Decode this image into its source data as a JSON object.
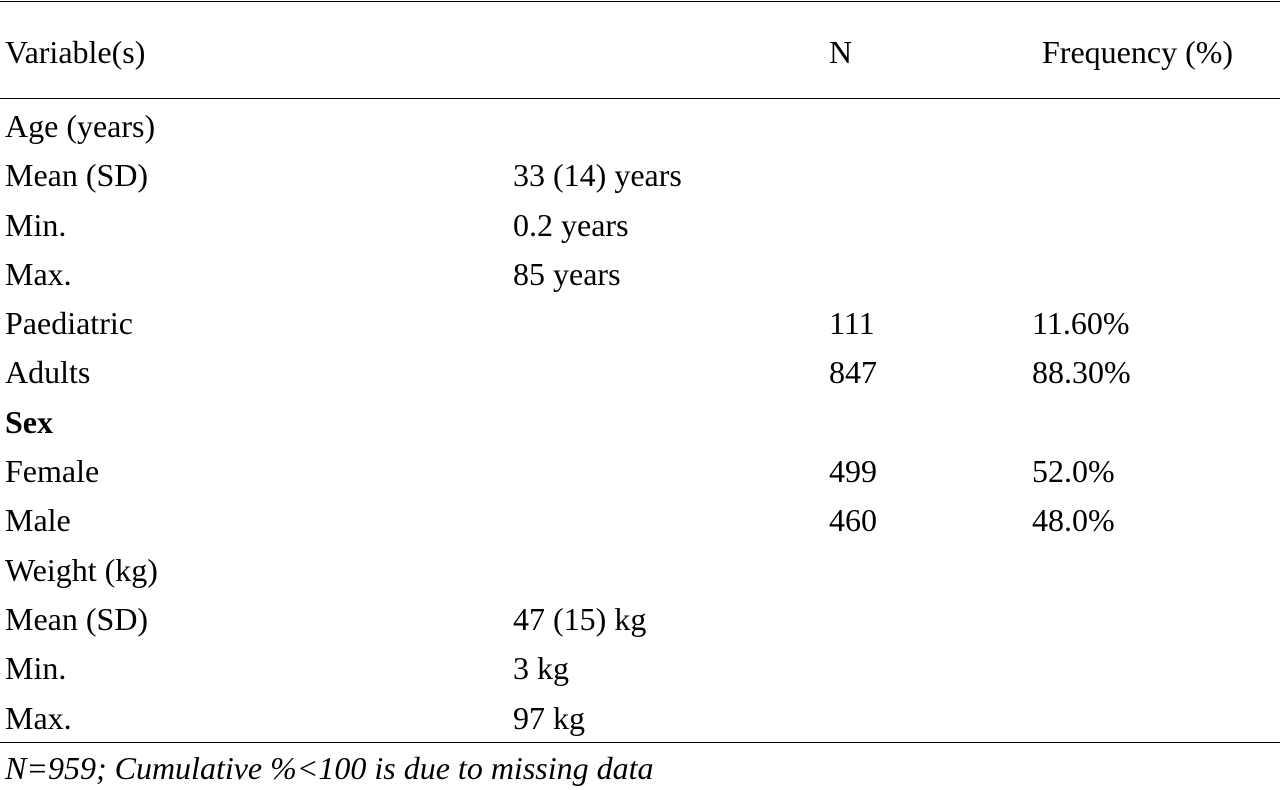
{
  "table": {
    "headers": {
      "variable": "Variable(s)",
      "value": "",
      "n": "N",
      "frequency": "Frequency (%)"
    },
    "rows": [
      {
        "variable": "Age (years)",
        "value": "",
        "n": "",
        "frequency": "",
        "bold": false
      },
      {
        "variable": "Mean (SD)",
        "value": "33 (14) years",
        "n": "",
        "frequency": "",
        "bold": false
      },
      {
        "variable": "Min.",
        "value": "0.2 years",
        "n": "",
        "frequency": "",
        "bold": false
      },
      {
        "variable": "Max.",
        "value": "85 years",
        "n": "",
        "frequency": "",
        "bold": false
      },
      {
        "variable": "Paediatric",
        "value": "",
        "n": "111",
        "frequency": "11.60%",
        "bold": false
      },
      {
        "variable": "Adults",
        "value": "",
        "n": "847",
        "frequency": "88.30%",
        "bold": false
      },
      {
        "variable": "Sex",
        "value": "",
        "n": "",
        "frequency": "",
        "bold": true
      },
      {
        "variable": "Female",
        "value": "",
        "n": "499",
        "frequency": "52.0%",
        "bold": false
      },
      {
        "variable": "Male",
        "value": "",
        "n": "460",
        "frequency": "48.0%",
        "bold": false
      },
      {
        "variable": "Weight (kg)",
        "value": "",
        "n": "",
        "frequency": "",
        "bold": false
      },
      {
        "variable": "Mean (SD)",
        "value": "47 (15) kg",
        "n": "",
        "frequency": "",
        "bold": false
      },
      {
        "variable": "Min.",
        "value": "3 kg",
        "n": "",
        "frequency": "",
        "bold": false
      },
      {
        "variable": "Max.",
        "value": "97 kg",
        "n": "",
        "frequency": "",
        "bold": false
      }
    ],
    "footnote": "N=959; Cumulative %<100 is due to missing data"
  }
}
